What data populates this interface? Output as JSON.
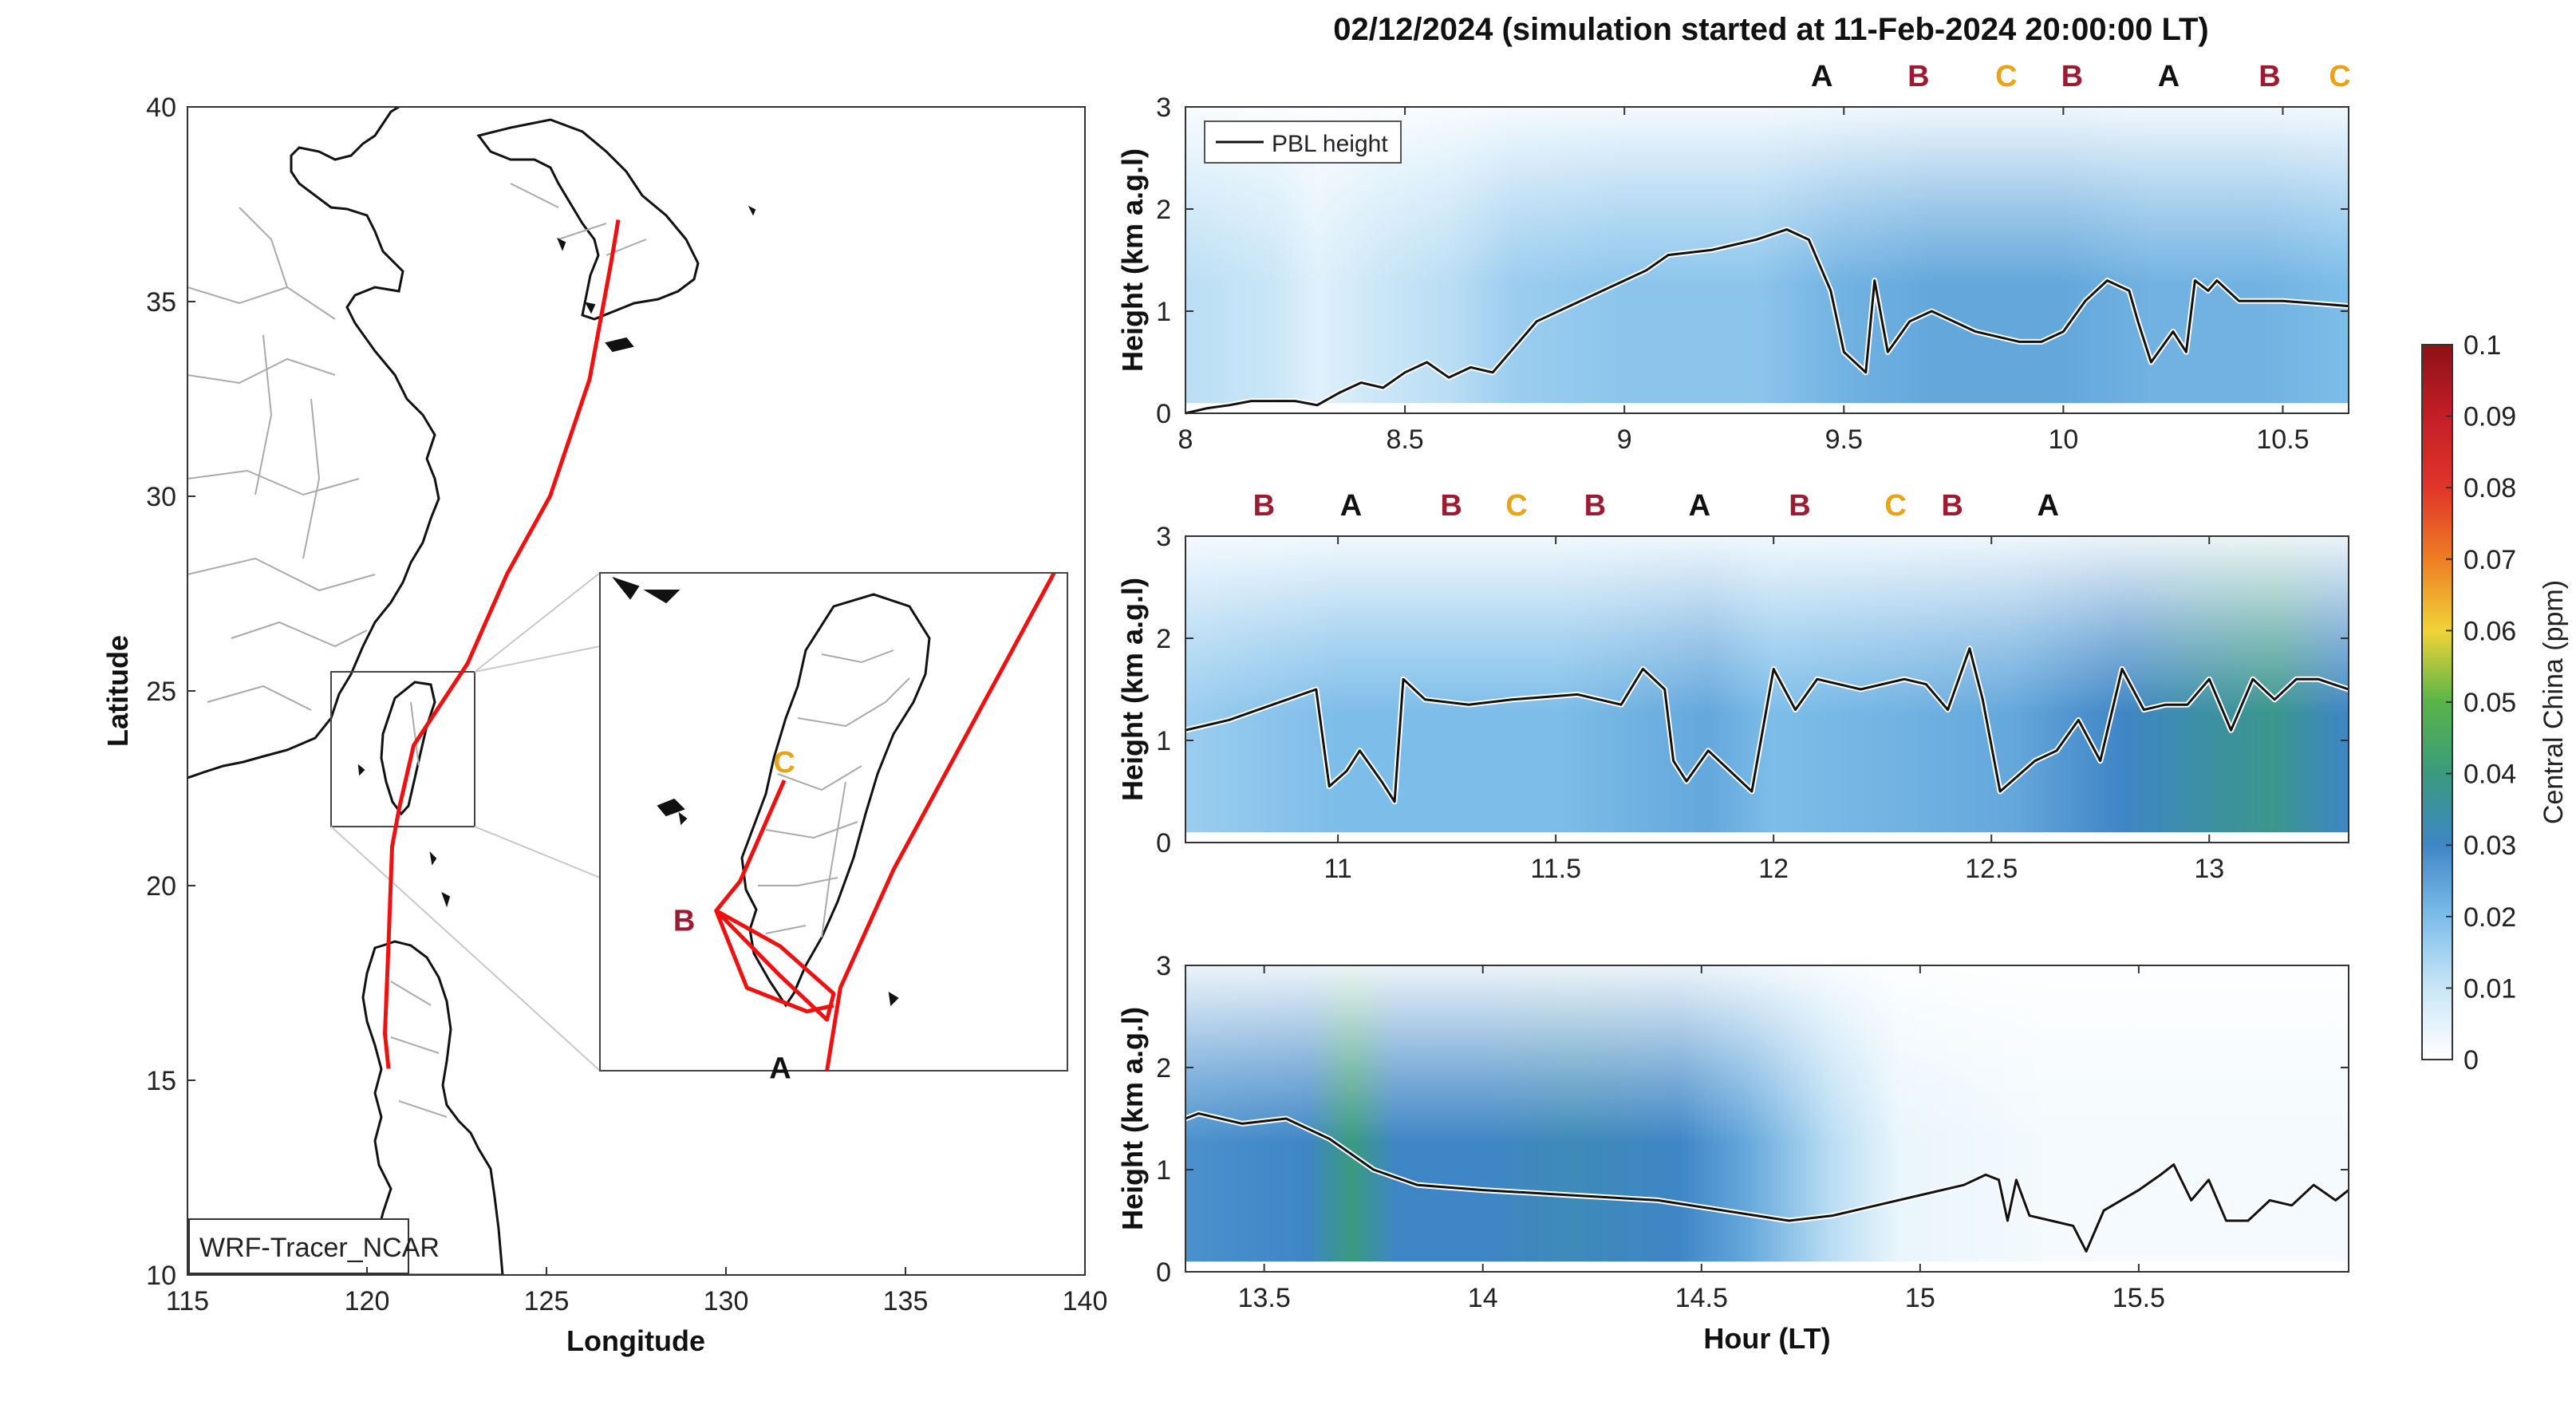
{
  "title": "02/12/2024 (simulation started at 11-Feb-2024 20:00:00 LT)",
  "colors": {
    "A": "#111111",
    "B": "#9b1b30",
    "C": "#e8a317",
    "track": "#ee1111",
    "pbl": "#111111"
  },
  "chart_data": [
    {
      "type": "map",
      "xlabel": "Longitude",
      "ylabel": "Latitude",
      "xlim": [
        115,
        140
      ],
      "ylim": [
        10,
        40
      ],
      "xticks": [
        115,
        120,
        125,
        130,
        135,
        140
      ],
      "yticks": [
        10,
        15,
        20,
        25,
        30,
        35,
        40
      ],
      "model_label": "WRF-Tracer_NCAR",
      "track": [
        [
          120.6,
          15.3
        ],
        [
          120.5,
          16.2
        ],
        [
          120.6,
          18.5
        ],
        [
          120.7,
          21.0
        ],
        [
          120.9,
          22.0
        ],
        [
          121.3,
          23.6
        ],
        [
          122.8,
          25.7
        ],
        [
          123.9,
          28.0
        ],
        [
          125.1,
          30.0
        ],
        [
          126.2,
          33.0
        ],
        [
          126.8,
          36.0
        ],
        [
          127.0,
          37.1
        ]
      ],
      "inset": {
        "xlim": [
          119.0,
          122.5
        ],
        "ylim": [
          21.5,
          25.7
        ],
        "markers": [
          {
            "label": "C",
            "lon": 120.38,
            "lat": 23.95
          },
          {
            "label": "B",
            "lon": 119.87,
            "lat": 22.85
          },
          {
            "label": "A",
            "lon": 120.35,
            "lat": 21.94
          }
        ]
      }
    },
    {
      "type": "heatmap",
      "panel": 1,
      "ylabel": "Height (km a.g.l)",
      "xlim": [
        8,
        10.65
      ],
      "ylim": [
        0,
        3
      ],
      "xticks": [
        "8",
        "8.5",
        "9",
        "9.5",
        "10",
        "10.5"
      ],
      "yticks": [
        "0",
        "1",
        "2",
        "3"
      ],
      "legend": "PBL height",
      "site_labels": [
        {
          "t": 9.45,
          "label": "A"
        },
        {
          "t": 9.67,
          "label": "B"
        },
        {
          "t": 9.87,
          "label": "C"
        },
        {
          "t": 10.02,
          "label": "B"
        },
        {
          "t": 10.24,
          "label": "A"
        },
        {
          "t": 10.47,
          "label": "B"
        },
        {
          "t": 10.63,
          "label": "C"
        }
      ],
      "pbl": [
        [
          8.0,
          0.0
        ],
        [
          8.05,
          0.05
        ],
        [
          8.1,
          0.08
        ],
        [
          8.15,
          0.12
        ],
        [
          8.25,
          0.12
        ],
        [
          8.3,
          0.08
        ],
        [
          8.35,
          0.2
        ],
        [
          8.4,
          0.3
        ],
        [
          8.45,
          0.25
        ],
        [
          8.5,
          0.4
        ],
        [
          8.55,
          0.5
        ],
        [
          8.6,
          0.35
        ],
        [
          8.65,
          0.45
        ],
        [
          8.7,
          0.4
        ],
        [
          8.73,
          0.55
        ],
        [
          8.8,
          0.9
        ],
        [
          8.9,
          1.1
        ],
        [
          9.0,
          1.3
        ],
        [
          9.05,
          1.4
        ],
        [
          9.1,
          1.55
        ],
        [
          9.2,
          1.6
        ],
        [
          9.3,
          1.7
        ],
        [
          9.37,
          1.8
        ],
        [
          9.42,
          1.7
        ],
        [
          9.47,
          1.2
        ],
        [
          9.5,
          0.6
        ],
        [
          9.55,
          0.4
        ],
        [
          9.57,
          1.3
        ],
        [
          9.6,
          0.6
        ],
        [
          9.65,
          0.9
        ],
        [
          9.7,
          1.0
        ],
        [
          9.8,
          0.8
        ],
        [
          9.9,
          0.7
        ],
        [
          9.95,
          0.7
        ],
        [
          10.0,
          0.8
        ],
        [
          10.05,
          1.1
        ],
        [
          10.1,
          1.3
        ],
        [
          10.15,
          1.2
        ],
        [
          10.17,
          0.9
        ],
        [
          10.2,
          0.5
        ],
        [
          10.25,
          0.8
        ],
        [
          10.28,
          0.6
        ],
        [
          10.3,
          1.3
        ],
        [
          10.33,
          1.2
        ],
        [
          10.35,
          1.3
        ],
        [
          10.4,
          1.1
        ],
        [
          10.5,
          1.1
        ],
        [
          10.65,
          1.05
        ]
      ],
      "field": [
        [
          8.0,
          0.012
        ],
        [
          8.2,
          0.01
        ],
        [
          8.3,
          0.006
        ],
        [
          8.45,
          0.01
        ],
        [
          8.6,
          0.012
        ],
        [
          8.75,
          0.016
        ],
        [
          9.0,
          0.018
        ],
        [
          9.3,
          0.018
        ],
        [
          9.5,
          0.022
        ],
        [
          9.7,
          0.024
        ],
        [
          10.0,
          0.024
        ],
        [
          10.2,
          0.022
        ],
        [
          10.45,
          0.022
        ],
        [
          10.65,
          0.02
        ]
      ]
    },
    {
      "type": "heatmap",
      "panel": 2,
      "ylabel": "Height (km a.g.l)",
      "xlim": [
        10.65,
        13.32
      ],
      "ylim": [
        0,
        3
      ],
      "xticks": [
        "11",
        "11.5",
        "12",
        "12.5",
        "13"
      ],
      "yticks": [
        "0",
        "1",
        "2",
        "3"
      ],
      "site_labels": [
        {
          "t": 10.83,
          "label": "B"
        },
        {
          "t": 11.03,
          "label": "A"
        },
        {
          "t": 11.26,
          "label": "B"
        },
        {
          "t": 11.41,
          "label": "C"
        },
        {
          "t": 11.59,
          "label": "B"
        },
        {
          "t": 11.83,
          "label": "A"
        },
        {
          "t": 12.06,
          "label": "B"
        },
        {
          "t": 12.28,
          "label": "C"
        },
        {
          "t": 12.41,
          "label": "B"
        },
        {
          "t": 12.63,
          "label": "A"
        }
      ],
      "pbl": [
        [
          10.65,
          1.1
        ],
        [
          10.75,
          1.2
        ],
        [
          10.85,
          1.35
        ],
        [
          10.95,
          1.5
        ],
        [
          10.98,
          0.55
        ],
        [
          11.02,
          0.7
        ],
        [
          11.05,
          0.9
        ],
        [
          11.1,
          0.6
        ],
        [
          11.13,
          0.4
        ],
        [
          11.15,
          1.6
        ],
        [
          11.2,
          1.4
        ],
        [
          11.3,
          1.35
        ],
        [
          11.4,
          1.4
        ],
        [
          11.55,
          1.45
        ],
        [
          11.65,
          1.35
        ],
        [
          11.7,
          1.7
        ],
        [
          11.75,
          1.5
        ],
        [
          11.77,
          0.8
        ],
        [
          11.8,
          0.6
        ],
        [
          11.85,
          0.9
        ],
        [
          11.9,
          0.7
        ],
        [
          11.95,
          0.5
        ],
        [
          12.0,
          1.7
        ],
        [
          12.05,
          1.3
        ],
        [
          12.1,
          1.6
        ],
        [
          12.2,
          1.5
        ],
        [
          12.3,
          1.6
        ],
        [
          12.35,
          1.55
        ],
        [
          12.4,
          1.3
        ],
        [
          12.45,
          1.9
        ],
        [
          12.48,
          1.4
        ],
        [
          12.52,
          0.5
        ],
        [
          12.6,
          0.8
        ],
        [
          12.65,
          0.9
        ],
        [
          12.7,
          1.2
        ],
        [
          12.75,
          0.8
        ],
        [
          12.8,
          1.7
        ],
        [
          12.85,
          1.3
        ],
        [
          12.9,
          1.35
        ],
        [
          12.95,
          1.35
        ],
        [
          13.0,
          1.6
        ],
        [
          13.05,
          1.1
        ],
        [
          13.1,
          1.6
        ],
        [
          13.15,
          1.4
        ],
        [
          13.2,
          1.6
        ],
        [
          13.25,
          1.6
        ],
        [
          13.32,
          1.5
        ]
      ],
      "field": [
        [
          10.65,
          0.016
        ],
        [
          11.0,
          0.02
        ],
        [
          11.5,
          0.02
        ],
        [
          11.85,
          0.024
        ],
        [
          12.0,
          0.02
        ],
        [
          12.3,
          0.022
        ],
        [
          12.55,
          0.024
        ],
        [
          12.8,
          0.03
        ],
        [
          13.0,
          0.035
        ],
        [
          13.15,
          0.038
        ],
        [
          13.25,
          0.033
        ],
        [
          13.32,
          0.03
        ]
      ]
    },
    {
      "type": "heatmap",
      "panel": 3,
      "xlabel": "Hour (LT)",
      "ylabel": "Height (km a.g.l)",
      "xlim": [
        13.32,
        15.98
      ],
      "ylim": [
        0,
        3
      ],
      "xticks": [
        "13.5",
        "14",
        "14.5",
        "15",
        "15.5"
      ],
      "yticks": [
        "0",
        "1",
        "2",
        "3"
      ],
      "pbl": [
        [
          13.32,
          1.5
        ],
        [
          13.35,
          1.55
        ],
        [
          13.45,
          1.45
        ],
        [
          13.55,
          1.5
        ],
        [
          13.65,
          1.3
        ],
        [
          13.75,
          1.0
        ],
        [
          13.85,
          0.85
        ],
        [
          14.0,
          0.8
        ],
        [
          14.2,
          0.75
        ],
        [
          14.4,
          0.7
        ],
        [
          14.55,
          0.6
        ],
        [
          14.7,
          0.5
        ],
        [
          14.8,
          0.55
        ],
        [
          14.9,
          0.65
        ],
        [
          15.0,
          0.75
        ],
        [
          15.1,
          0.85
        ],
        [
          15.15,
          0.95
        ],
        [
          15.18,
          0.9
        ],
        [
          15.2,
          0.5
        ],
        [
          15.22,
          0.9
        ],
        [
          15.25,
          0.55
        ],
        [
          15.3,
          0.5
        ],
        [
          15.35,
          0.45
        ],
        [
          15.38,
          0.2
        ],
        [
          15.42,
          0.6
        ],
        [
          15.5,
          0.8
        ],
        [
          15.55,
          0.95
        ],
        [
          15.58,
          1.05
        ],
        [
          15.62,
          0.7
        ],
        [
          15.66,
          0.9
        ],
        [
          15.7,
          0.5
        ],
        [
          15.75,
          0.5
        ],
        [
          15.8,
          0.7
        ],
        [
          15.85,
          0.65
        ],
        [
          15.9,
          0.85
        ],
        [
          15.95,
          0.7
        ],
        [
          15.98,
          0.8
        ]
      ],
      "field": [
        [
          13.32,
          0.028
        ],
        [
          13.6,
          0.03
        ],
        [
          13.7,
          0.04
        ],
        [
          13.8,
          0.03
        ],
        [
          14.0,
          0.03
        ],
        [
          14.2,
          0.032
        ],
        [
          14.45,
          0.03
        ],
        [
          14.6,
          0.024
        ],
        [
          14.8,
          0.012
        ],
        [
          14.95,
          0.004
        ],
        [
          15.3,
          0.002
        ],
        [
          15.98,
          0.002
        ]
      ]
    },
    {
      "type": "colorbar",
      "label": "Central China (ppm)",
      "ticks": [
        "0",
        "0.01",
        "0.02",
        "0.03",
        "0.04",
        "0.05",
        "0.06",
        "0.07",
        "0.08",
        "0.09",
        "0.1"
      ]
    }
  ]
}
